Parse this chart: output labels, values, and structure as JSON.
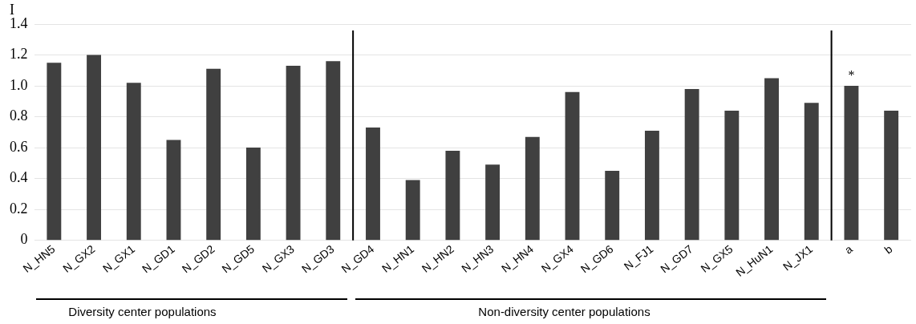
{
  "chart_data": {
    "type": "bar",
    "ylabel": "I",
    "categories": [
      "N_HN5",
      "N_GX2",
      "N_GX1",
      "N_GD1",
      "N_GD2",
      "N_GD5",
      "N_GX3",
      "N_GD3",
      "N_GD4",
      "N_HN1",
      "N_HN2",
      "N_HN3",
      "N_HN4",
      "N_GX4",
      "N_GD6",
      "N_FJ1",
      "N_GD7",
      "N_GX5",
      "N_HuN1",
      "N_JX1",
      "a",
      "b"
    ],
    "values": [
      1.15,
      1.2,
      1.02,
      0.65,
      1.11,
      0.6,
      1.13,
      1.16,
      0.73,
      0.39,
      0.58,
      0.49,
      0.67,
      0.96,
      0.45,
      0.71,
      0.98,
      0.84,
      1.05,
      0.89,
      1.0,
      0.84
    ],
    "color": "#404040",
    "ylim": [
      0,
      1.4
    ],
    "yticks": [
      0,
      {
        "value": 0.2,
        "label": "0.2"
      },
      {
        "value": 0.4,
        "label": "0.4"
      },
      {
        "value": 0.6,
        "label": "0.6"
      },
      {
        "value": 0.8,
        "label": "0.8"
      },
      {
        "value": 1.0,
        "label": "1.0"
      },
      {
        "value": 1.2,
        "label": "1.2"
      },
      {
        "value": 1.4,
        "label": "1.4"
      }
    ],
    "grid": "y",
    "legend": false,
    "annotations": [
      {
        "text": "*",
        "x": "a",
        "y": 1.0
      },
      "Diversity center populations",
      "Non-diversity center populations"
    ]
  }
}
